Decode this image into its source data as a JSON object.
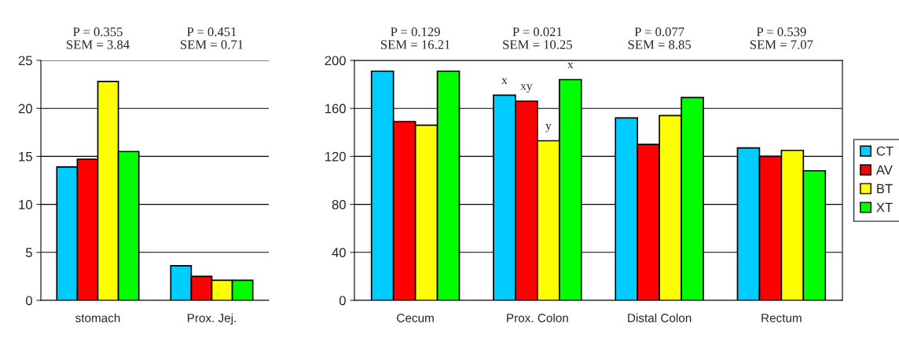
{
  "chart_data": [
    {
      "type": "bar",
      "categories": [
        "stomach",
        "Prox. Jej."
      ],
      "ylim": [
        0,
        25
      ],
      "yticks": [
        0,
        5,
        10,
        15,
        20,
        25
      ],
      "grid": "y",
      "legend": false,
      "series": [
        {
          "color": "#00ccff",
          "values": [
            13.9,
            3.6
          ]
        },
        {
          "color": "#ff0000",
          "values": [
            14.7,
            2.5
          ]
        },
        {
          "color": "#ffff00",
          "values": [
            22.8,
            2.1
          ]
        },
        {
          "color": "#00ff00",
          "values": [
            15.5,
            2.1
          ]
        }
      ],
      "annotations": [
        "P = 0.355\nSEM = 3.84",
        "P = 0.451\nSEM = 0.71"
      ]
    },
    {
      "type": "bar",
      "categories": [
        "Cecum",
        "Prox. Colon",
        "Distal Colon",
        "Rectum"
      ],
      "ylim": [
        0,
        200
      ],
      "yticks": [
        0,
        40,
        80,
        120,
        160,
        200
      ],
      "grid": "y",
      "legend": "right",
      "series": [
        {
          "name": "CT",
          "color": "#00ccff",
          "values": [
            191,
            171,
            152,
            127
          ],
          "value_labels": [
            null,
            "x",
            null,
            null
          ]
        },
        {
          "name": "AV",
          "color": "#ff0000",
          "values": [
            149,
            166,
            130,
            120
          ],
          "value_labels": [
            null,
            "xy",
            null,
            null
          ]
        },
        {
          "name": "BT",
          "color": "#ffff00",
          "values": [
            146,
            133,
            154,
            125
          ],
          "value_labels": [
            null,
            "y",
            null,
            null
          ]
        },
        {
          "name": "XT",
          "color": "#00ff00",
          "values": [
            191,
            184,
            169,
            108
          ],
          "value_labels": [
            null,
            "x",
            null,
            null
          ]
        }
      ],
      "annotations": [
        "P = 0.129\nSEM = 16.21",
        "P = 0.021\nSEM = 10.25",
        "P = 0.077\nSEM = 8.85",
        "P = 0.539\nSEM = 7.07"
      ]
    }
  ]
}
